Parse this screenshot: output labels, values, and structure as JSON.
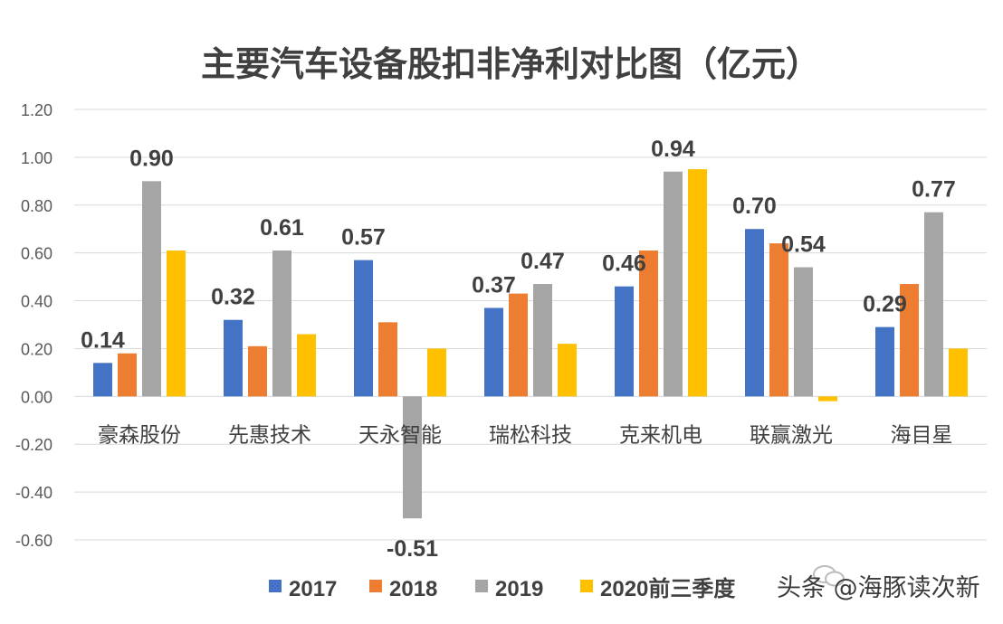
{
  "chart_data": {
    "type": "bar",
    "title": "主要汽车设备股扣非净利对比图（亿元）",
    "categories": [
      "豪森股份",
      "先惠技术",
      "天永智能",
      "瑞松科技",
      "克来机电",
      "联赢激光",
      "海目星"
    ],
    "series": [
      {
        "name": "2017",
        "color": "#4472C4",
        "values": [
          0.14,
          0.32,
          0.57,
          0.37,
          0.46,
          0.7,
          0.29
        ]
      },
      {
        "name": "2018",
        "color": "#ED7D31",
        "values": [
          0.18,
          0.21,
          0.31,
          0.43,
          0.61,
          0.64,
          0.47
        ]
      },
      {
        "name": "2019",
        "color": "#A5A5A5",
        "values": [
          0.9,
          0.61,
          -0.51,
          0.47,
          0.94,
          0.54,
          0.77
        ]
      },
      {
        "name": "2020前三季度",
        "color": "#FFC000",
        "values": [
          0.61,
          0.26,
          0.2,
          0.22,
          0.95,
          -0.02,
          0.2
        ]
      }
    ],
    "data_labels": [
      {
        "category": "豪森股份",
        "series": "2017",
        "text": "0.14"
      },
      {
        "category": "豪森股份",
        "series": "2019",
        "text": "0.90"
      },
      {
        "category": "先惠技术",
        "series": "2017",
        "text": "0.32"
      },
      {
        "category": "先惠技术",
        "series": "2019",
        "text": "0.61"
      },
      {
        "category": "天永智能",
        "series": "2017",
        "text": "0.57"
      },
      {
        "category": "天永智能",
        "series": "2019",
        "text": "-0.51"
      },
      {
        "category": "瑞松科技",
        "series": "2017",
        "text": "0.37"
      },
      {
        "category": "瑞松科技",
        "series": "2019",
        "text": "0.47"
      },
      {
        "category": "克来机电",
        "series": "2017",
        "text": "0.46"
      },
      {
        "category": "克来机电",
        "series": "2019",
        "text": "0.94"
      },
      {
        "category": "联赢激光",
        "series": "2017",
        "text": "0.70"
      },
      {
        "category": "联赢激光",
        "series": "2019",
        "text": "0.54"
      },
      {
        "category": "海目星",
        "series": "2017",
        "text": "0.29"
      },
      {
        "category": "海目星",
        "series": "2019",
        "text": "0.77"
      }
    ],
    "yticks": [
      "1.20",
      "1.00",
      "0.80",
      "0.60",
      "0.40",
      "0.20",
      "0.00",
      "-0.20",
      "-0.40",
      "-0.60"
    ],
    "ylim": [
      -0.6,
      1.2
    ],
    "grid": true,
    "legend_position": "bottom"
  },
  "watermark": {
    "text": "头条 @海豚读次新",
    "icon": "wechat-logo-icon"
  }
}
